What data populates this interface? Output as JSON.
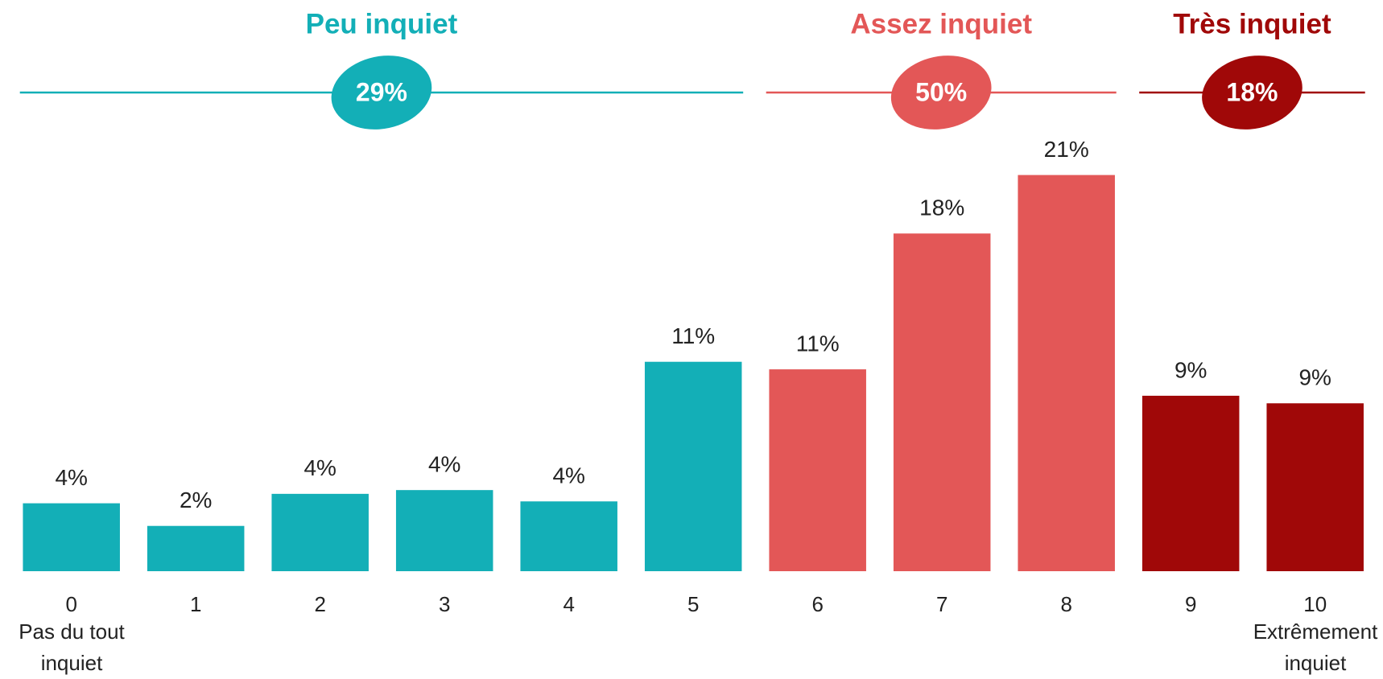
{
  "chart_data": {
    "type": "bar",
    "categories": [
      "0",
      "1",
      "2",
      "3",
      "4",
      "5",
      "6",
      "7",
      "8",
      "9",
      "10"
    ],
    "series": [
      {
        "name": "Peu inquiet",
        "color": "#13afb7",
        "total": 29,
        "total_label": "29%",
        "values": [
          3.6,
          2.4,
          4.1,
          4.3,
          3.7,
          11.1,
          null,
          null,
          null,
          null,
          null
        ],
        "value_labels": [
          "4%",
          "2%",
          "4%",
          "4%",
          "4%",
          "11%",
          null,
          null,
          null,
          null,
          null
        ]
      },
      {
        "name": "Assez inquiet",
        "color": "#e35757",
        "total": 50,
        "total_label": "50%",
        "values": [
          null,
          null,
          null,
          null,
          null,
          null,
          10.7,
          17.9,
          21.0,
          null,
          null
        ],
        "value_labels": [
          null,
          null,
          null,
          null,
          null,
          null,
          "11%",
          "18%",
          "21%",
          null,
          null
        ]
      },
      {
        "name": "Très inquiet",
        "color": "#a00808",
        "total": 18,
        "total_label": "18%",
        "values": [
          null,
          null,
          null,
          null,
          null,
          null,
          null,
          null,
          null,
          9.3,
          8.9
        ],
        "value_labels": [
          null,
          null,
          null,
          null,
          null,
          null,
          null,
          null,
          null,
          "9%",
          "9%"
        ]
      }
    ],
    "low_label": "Pas du tout inquiet",
    "high_label": "Extrêmement inquiet"
  }
}
